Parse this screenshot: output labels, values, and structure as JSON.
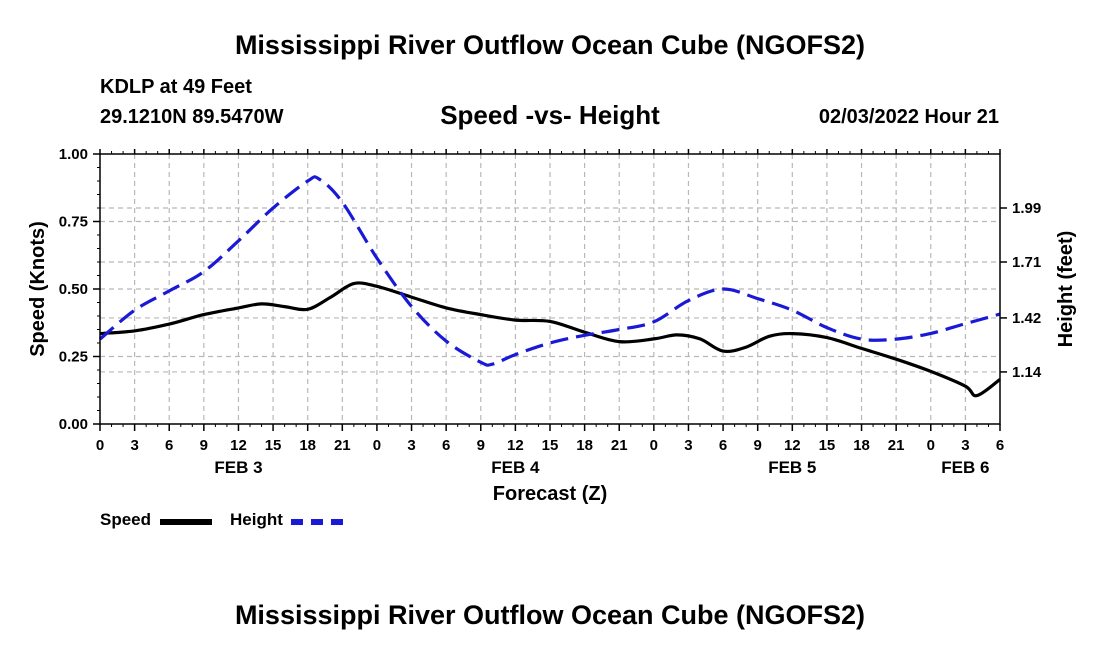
{
  "page": {
    "title": "Mississippi River Outflow Ocean Cube (NGOFS2)",
    "footer_title": "Mississippi River Outflow Ocean Cube (NGOFS2)",
    "station": "KDLP at 49 Feet",
    "coords": "29.1210N  89.5470W",
    "subtitle": "Speed -vs- Height",
    "datetime": "02/03/2022 Hour 21"
  },
  "legend": {
    "speed_label": "Speed",
    "height_label": "Height"
  },
  "colors": {
    "speed": "#000000",
    "height": "#1a1ad6",
    "grid": "#b8b8b8"
  },
  "chart_data": {
    "type": "line",
    "title": "Speed -vs- Height",
    "xlabel": "Forecast (Z)",
    "ylabel": "Speed (Knots)",
    "ylabel_right": "Height (feet)",
    "x_range": [
      0,
      78
    ],
    "x_tick_hours": [
      0,
      3,
      6,
      9,
      12,
      15,
      18,
      21,
      24,
      27,
      30,
      33,
      36,
      39,
      42,
      45,
      48,
      51,
      54,
      57,
      60,
      63,
      66,
      69,
      72,
      75,
      78
    ],
    "x_tick_labels": [
      "0",
      "3",
      "6",
      "9",
      "12",
      "15",
      "18",
      "21",
      "0",
      "3",
      "6",
      "9",
      "12",
      "15",
      "18",
      "21",
      "0",
      "3",
      "6",
      "9",
      "12",
      "15",
      "18",
      "21",
      "0",
      "3",
      "6"
    ],
    "day_labels": [
      {
        "label": "FEB 3",
        "hour": 12
      },
      {
        "label": "FEB 4",
        "hour": 36
      },
      {
        "label": "FEB 5",
        "hour": 60
      },
      {
        "label": "FEB 6",
        "hour": 75
      }
    ],
    "ylim": [
      0,
      1.0
    ],
    "y_ticks": [
      0,
      0.25,
      0.5,
      0.75,
      1.0
    ],
    "y_tick_labels": [
      "0.00",
      "0.25",
      "0.50",
      "0.75",
      "1.00"
    ],
    "ylim_right": [
      0.87,
      2.27
    ],
    "y_ticks_right": [
      1.14,
      1.42,
      1.71,
      1.99
    ],
    "y_tick_labels_right": [
      "1.14",
      "1.42",
      "1.71",
      "1.99"
    ],
    "series": [
      {
        "name": "Speed",
        "axis": "left",
        "style": "solid",
        "x": [
          0,
          3,
          6,
          9,
          12,
          14,
          16,
          18,
          20,
          22,
          24,
          27,
          30,
          33,
          36,
          39,
          42,
          45,
          48,
          50,
          52,
          54,
          56,
          58,
          60,
          63,
          66,
          69,
          72,
          75,
          76,
          78
        ],
        "values": [
          0.335,
          0.345,
          0.37,
          0.405,
          0.43,
          0.445,
          0.435,
          0.425,
          0.47,
          0.52,
          0.51,
          0.47,
          0.43,
          0.405,
          0.385,
          0.38,
          0.34,
          0.305,
          0.315,
          0.33,
          0.315,
          0.27,
          0.285,
          0.325,
          0.335,
          0.32,
          0.28,
          0.24,
          0.195,
          0.14,
          0.105,
          0.165
        ]
      },
      {
        "name": "Height",
        "axis": "right",
        "style": "dashed",
        "x": [
          0,
          3,
          6,
          9,
          12,
          15,
          18,
          19,
          21,
          24,
          27,
          30,
          33,
          34,
          36,
          39,
          42,
          45,
          48,
          51,
          54,
          57,
          60,
          63,
          66,
          69,
          72,
          75,
          78
        ],
        "values": [
          1.31,
          1.46,
          1.56,
          1.66,
          1.82,
          1.99,
          2.13,
          2.14,
          2.02,
          1.73,
          1.48,
          1.3,
          1.19,
          1.18,
          1.23,
          1.29,
          1.33,
          1.36,
          1.4,
          1.51,
          1.57,
          1.52,
          1.46,
          1.37,
          1.31,
          1.31,
          1.34,
          1.39,
          1.44
        ]
      }
    ]
  }
}
